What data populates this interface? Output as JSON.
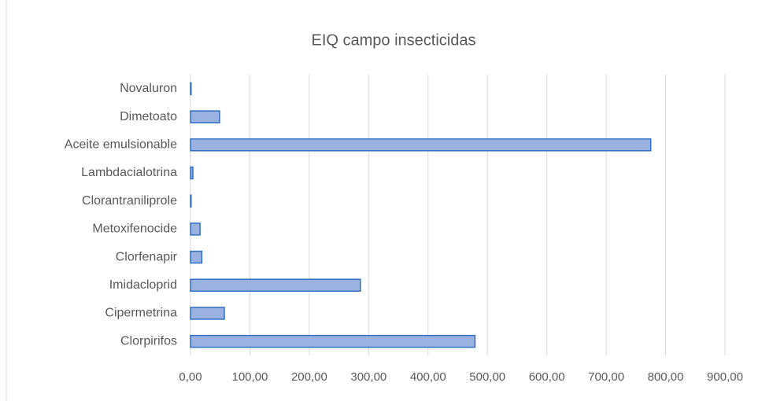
{
  "chart_data": {
    "type": "bar",
    "orientation": "horizontal",
    "title": "EIQ campo insecticidas",
    "categories": [
      "Clorpirifos",
      "Cipermetrina",
      "Imidacloprid",
      "Clorfenapir",
      "Metoxifenocide",
      "Clorantraniliprole",
      "Lambdacialotrina",
      "Aceite emulsionable",
      "Dimetoato",
      "Novaluron"
    ],
    "values": [
      479,
      57,
      286,
      19,
      16,
      1,
      4,
      775,
      49,
      1
    ],
    "color": "#9bb1e0",
    "edge_color": "#2f6fc4",
    "xlim": [
      0,
      900
    ],
    "xticks": [
      {
        "value": 0,
        "label": "0,00"
      },
      {
        "value": 100,
        "label": "100,00"
      },
      {
        "value": 200,
        "label": "200,00"
      },
      {
        "value": 300,
        "label": "300,00"
      },
      {
        "value": 400,
        "label": "400,00"
      },
      {
        "value": 500,
        "label": "500,00"
      },
      {
        "value": 600,
        "label": "600,00"
      },
      {
        "value": 700,
        "label": "700,00"
      },
      {
        "value": 800,
        "label": "800,00"
      },
      {
        "value": 900,
        "label": "900,00"
      }
    ],
    "grid": true
  }
}
